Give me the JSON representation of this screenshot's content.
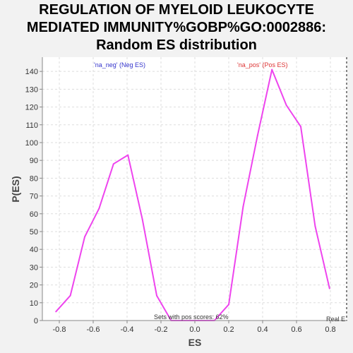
{
  "chart_data": {
    "type": "line",
    "title_lines": [
      "REGULATION OF MYELOID LEUKOCYTE",
      "MEDIATED IMMUNITY%GOBP%GO:0002886:",
      "Random ES distribution"
    ],
    "xlabel": "ES",
    "ylabel": "P(ES)",
    "xlim": [
      -0.9,
      0.9
    ],
    "ylim": [
      0,
      148
    ],
    "xticks": [
      -0.8,
      -0.6,
      -0.4,
      -0.2,
      0.0,
      0.2,
      0.4,
      0.6,
      0.8
    ],
    "xtick_labels": [
      "-0.8",
      "-0.6",
      "-0.4",
      "-0.2",
      "0.0",
      "0.2",
      "0.4",
      "0.6",
      "0.8"
    ],
    "yticks": [
      0,
      10,
      20,
      30,
      40,
      50,
      60,
      70,
      80,
      90,
      100,
      110,
      120,
      130,
      140
    ],
    "grid": true,
    "series": [
      {
        "color": "#ee44ee",
        "x": [
          -0.82,
          -0.735,
          -0.65,
          -0.565,
          -0.48,
          -0.395,
          -0.31,
          -0.225,
          -0.14,
          -0.055,
          0.03,
          0.115,
          0.2,
          0.285,
          0.37,
          0.455,
          0.54,
          0.625,
          0.71,
          0.795
        ],
        "y": [
          5,
          14,
          47,
          63,
          88,
          93,
          57,
          14,
          0,
          0,
          0,
          0,
          9,
          64,
          104,
          141,
          121,
          109,
          53,
          18
        ]
      }
    ],
    "annotations": {
      "neg_label": "'na_neg' (Neg ES)",
      "pos_label": "'na_pos' (Pos ES)",
      "sets_label": "Sets with pos scores: 62%",
      "real_label": "Real E"
    },
    "colors": {
      "neg": "#3333cc",
      "pos": "#dd3333",
      "line": "#ee44ee",
      "grid": "#dddddd",
      "marker": "#333333"
    }
  }
}
